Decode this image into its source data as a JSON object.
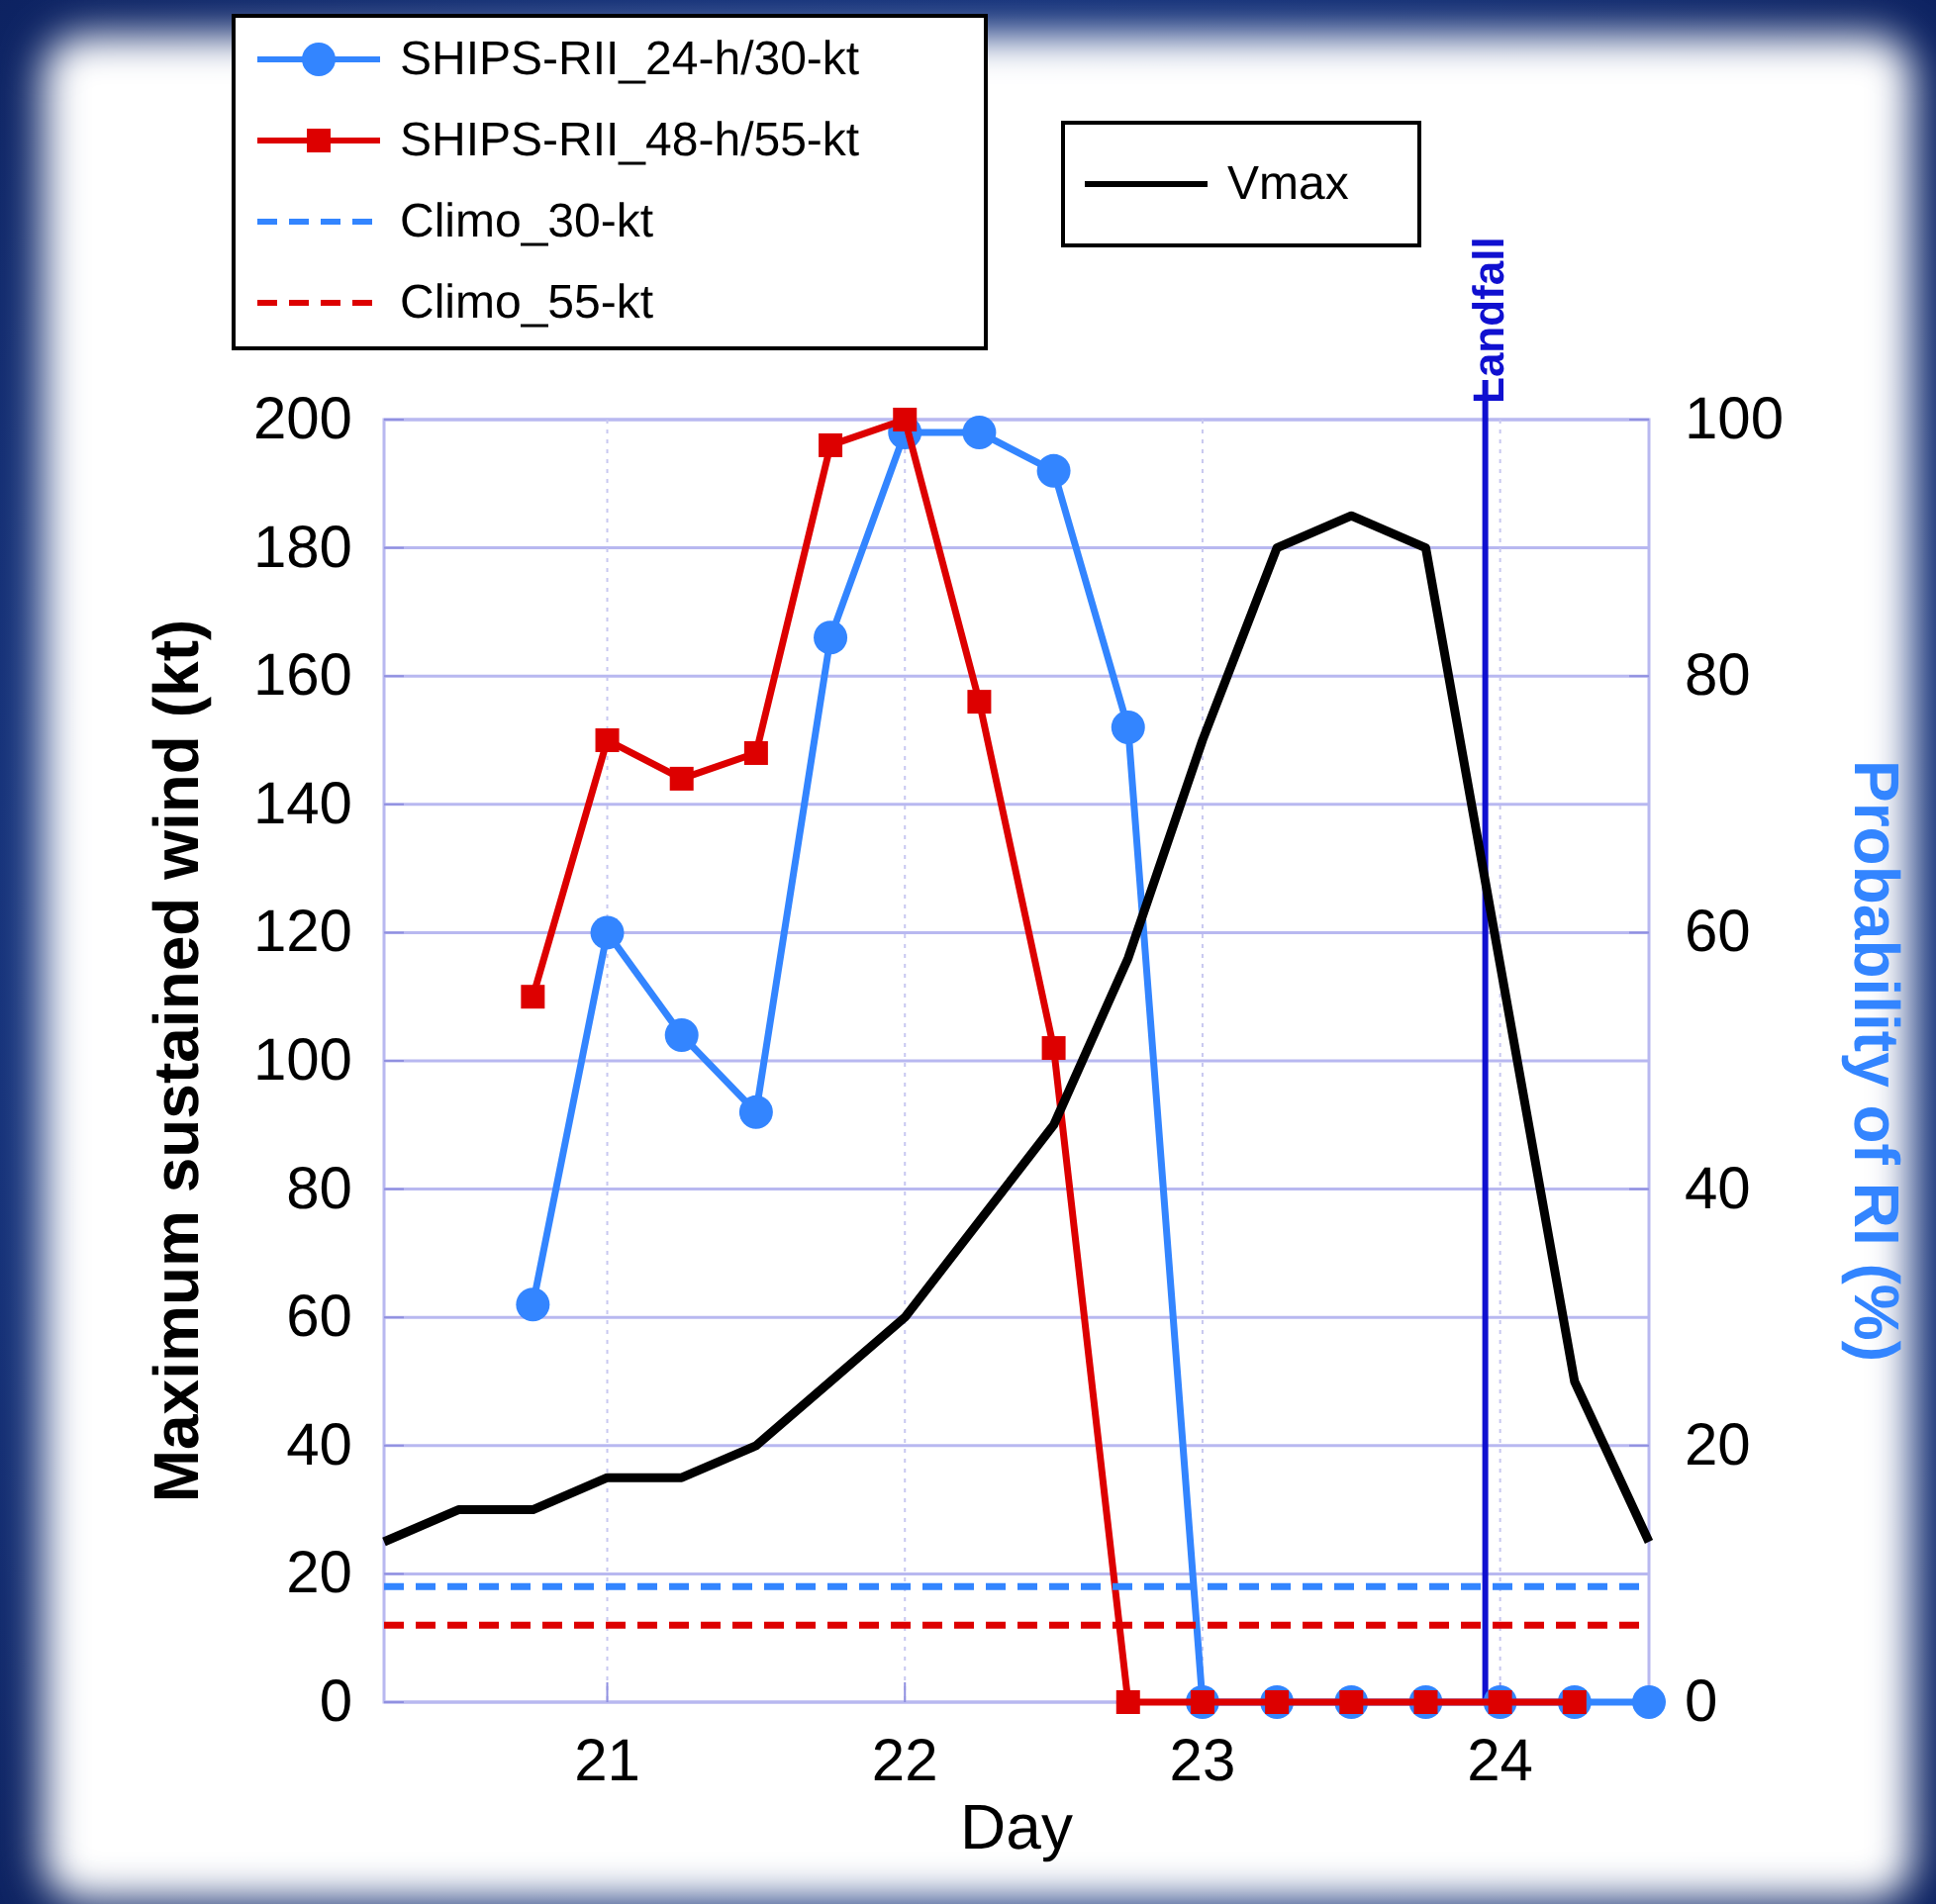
{
  "chart_data": {
    "type": "line",
    "xlabel": "Day",
    "ylabel": "Maximum sustained wind (kt)",
    "y2label": "Probability of RI (%)",
    "xlim": [
      20.25,
      24.5
    ],
    "xticks": [
      21,
      22,
      23,
      24
    ],
    "ylim": [
      0,
      200
    ],
    "yticks": [
      0,
      20,
      40,
      60,
      80,
      100,
      120,
      140,
      160,
      180,
      200
    ],
    "y2lim": [
      0,
      100
    ],
    "y2ticks": [
      0,
      20,
      40,
      60,
      80,
      100
    ],
    "grid": true,
    "legend": "top",
    "series": [
      {
        "name": "SHIPS-RII_24-h/30-kt",
        "color": "#3385ff",
        "axis": "y2",
        "marker": "circle",
        "x": [
          20.75,
          21,
          21.25,
          21.5,
          21.75,
          22,
          22.25,
          22.5,
          22.75,
          23,
          23.25,
          23.5,
          23.75,
          24,
          24.25,
          24.5
        ],
        "values": [
          31,
          60,
          52,
          46,
          83,
          99,
          99,
          96,
          76,
          0,
          0,
          0,
          0,
          0,
          0,
          0
        ]
      },
      {
        "name": "SHIPS-RII_48-h/55-kt",
        "color": "#dd0000",
        "axis": "y2",
        "marker": "square",
        "x": [
          20.75,
          21,
          21.25,
          21.5,
          21.75,
          22,
          22.25,
          22.5,
          22.75,
          23,
          23.25,
          23.5,
          23.75,
          24,
          24.25
        ],
        "values": [
          55,
          75,
          72,
          74,
          98,
          100,
          78,
          51,
          0,
          0,
          0,
          0,
          0,
          0,
          0
        ]
      },
      {
        "name": "Climo_30-kt",
        "color": "#3385ff",
        "axis": "y2",
        "marker": "none",
        "line_style": "dashed",
        "x": [
          20.25,
          24.5
        ],
        "values": [
          9,
          9
        ]
      },
      {
        "name": "Climo_55-kt",
        "color": "#dd0000",
        "axis": "y2",
        "marker": "none",
        "line_style": "dashed",
        "x": [
          20.25,
          24.5
        ],
        "values": [
          6,
          6
        ]
      },
      {
        "name": "Vmax",
        "color": "#000000",
        "axis": "y",
        "marker": "none",
        "x": [
          20.25,
          20.5,
          20.75,
          21,
          21.25,
          21.5,
          21.75,
          22,
          22.25,
          22.5,
          22.75,
          23,
          23.25,
          23.5,
          23.75,
          24,
          24.25,
          24.5
        ],
        "values": [
          25,
          30,
          30,
          35,
          35,
          40,
          50,
          60,
          75,
          90,
          116,
          150,
          180,
          185,
          180,
          115,
          50,
          25
        ]
      }
    ],
    "ref_lines": [
      {
        "axis": "x",
        "value": 23.95,
        "label": "Landfall",
        "color": "#1010d0"
      }
    ]
  }
}
